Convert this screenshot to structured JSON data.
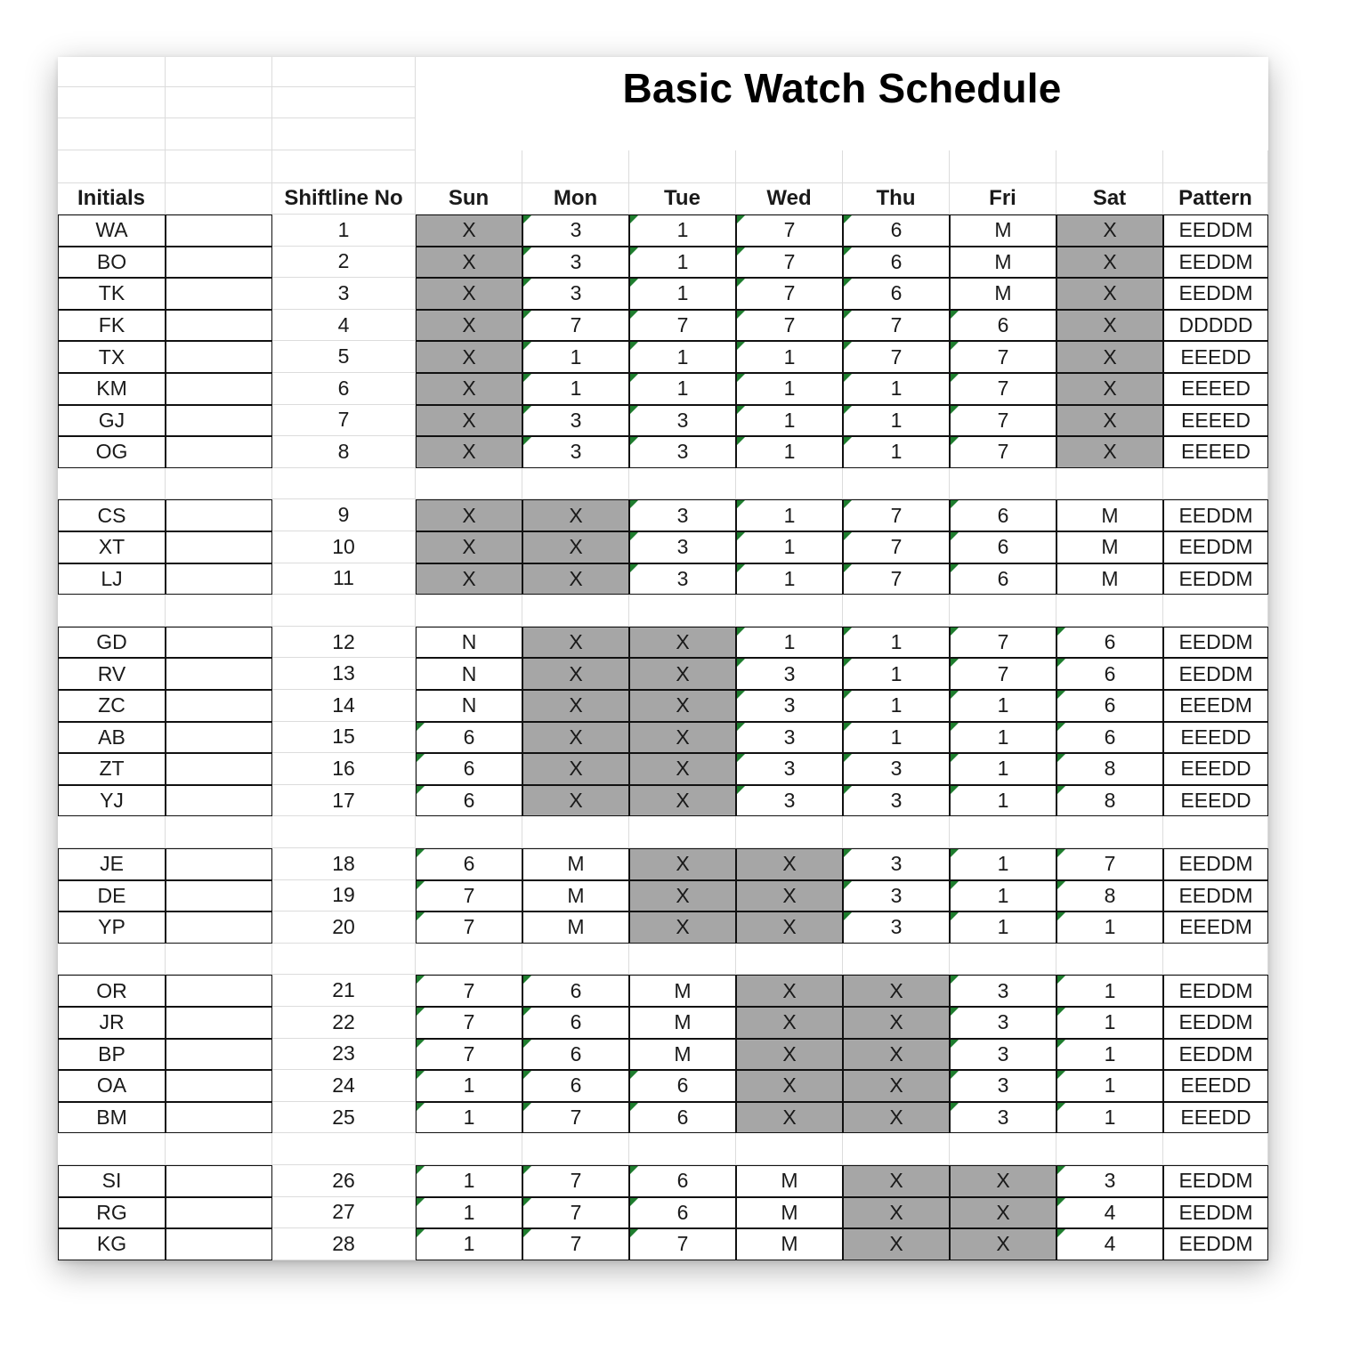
{
  "title": "Basic Watch Schedule",
  "headers": [
    "Initials",
    "",
    "Shiftline No",
    "Sun",
    "Mon",
    "Tue",
    "Wed",
    "Thu",
    "Fri",
    "Sat",
    "Pattern"
  ],
  "rows": [
    {
      "initials": "WA",
      "no": "1",
      "days": [
        "X",
        "3",
        "1",
        "7",
        "6",
        "M",
        "X"
      ],
      "pattern": "EEDDM"
    },
    {
      "initials": "BO",
      "no": "2",
      "days": [
        "X",
        "3",
        "1",
        "7",
        "6",
        "M",
        "X"
      ],
      "pattern": "EEDDM"
    },
    {
      "initials": "TK",
      "no": "3",
      "days": [
        "X",
        "3",
        "1",
        "7",
        "6",
        "M",
        "X"
      ],
      "pattern": "EEDDM"
    },
    {
      "initials": "FK",
      "no": "4",
      "days": [
        "X",
        "7",
        "7",
        "7",
        "7",
        "6",
        "X"
      ],
      "pattern": "DDDDD"
    },
    {
      "initials": "TX",
      "no": "5",
      "days": [
        "X",
        "1",
        "1",
        "1",
        "7",
        "7",
        "X"
      ],
      "pattern": "EEEDD"
    },
    {
      "initials": "KM",
      "no": "6",
      "days": [
        "X",
        "1",
        "1",
        "1",
        "1",
        "7",
        "X"
      ],
      "pattern": "EEEED"
    },
    {
      "initials": "GJ",
      "no": "7",
      "days": [
        "X",
        "3",
        "3",
        "1",
        "1",
        "7",
        "X"
      ],
      "pattern": "EEEED"
    },
    {
      "initials": "OG",
      "no": "8",
      "days": [
        "X",
        "3",
        "3",
        "1",
        "1",
        "7",
        "X"
      ],
      "pattern": "EEEED"
    },
    null,
    {
      "initials": "CS",
      "no": "9",
      "days": [
        "X",
        "X",
        "3",
        "1",
        "7",
        "6",
        "M"
      ],
      "pattern": "EEDDM"
    },
    {
      "initials": "XT",
      "no": "10",
      "days": [
        "X",
        "X",
        "3",
        "1",
        "7",
        "6",
        "M"
      ],
      "pattern": "EEDDM"
    },
    {
      "initials": "LJ",
      "no": "11",
      "days": [
        "X",
        "X",
        "3",
        "1",
        "7",
        "6",
        "M"
      ],
      "pattern": "EEDDM"
    },
    null,
    {
      "initials": "GD",
      "no": "12",
      "days": [
        "N",
        "X",
        "X",
        "1",
        "1",
        "7",
        "6"
      ],
      "pattern": "EEDDM"
    },
    {
      "initials": "RV",
      "no": "13",
      "days": [
        "N",
        "X",
        "X",
        "3",
        "1",
        "7",
        "6"
      ],
      "pattern": "EEDDM"
    },
    {
      "initials": "ZC",
      "no": "14",
      "days": [
        "N",
        "X",
        "X",
        "3",
        "1",
        "1",
        "6"
      ],
      "pattern": "EEEDM"
    },
    {
      "initials": "AB",
      "no": "15",
      "days": [
        "6",
        "X",
        "X",
        "3",
        "1",
        "1",
        "6"
      ],
      "pattern": "EEEDD"
    },
    {
      "initials": "ZT",
      "no": "16",
      "days": [
        "6",
        "X",
        "X",
        "3",
        "3",
        "1",
        "8"
      ],
      "pattern": "EEEDD"
    },
    {
      "initials": "YJ",
      "no": "17",
      "days": [
        "6",
        "X",
        "X",
        "3",
        "3",
        "1",
        "8"
      ],
      "pattern": "EEEDD"
    },
    null,
    {
      "initials": "JE",
      "no": "18",
      "days": [
        "6",
        "M",
        "X",
        "X",
        "3",
        "1",
        "7"
      ],
      "pattern": "EEDDM"
    },
    {
      "initials": "DE",
      "no": "19",
      "days": [
        "7",
        "M",
        "X",
        "X",
        "3",
        "1",
        "8"
      ],
      "pattern": "EEDDM"
    },
    {
      "initials": "YP",
      "no": "20",
      "days": [
        "7",
        "M",
        "X",
        "X",
        "3",
        "1",
        "1"
      ],
      "pattern": "EEEDM"
    },
    null,
    {
      "initials": "OR",
      "no": "21",
      "days": [
        "7",
        "6",
        "M",
        "X",
        "X",
        "3",
        "1"
      ],
      "pattern": "EEDDM"
    },
    {
      "initials": "JR",
      "no": "22",
      "days": [
        "7",
        "6",
        "M",
        "X",
        "X",
        "3",
        "1"
      ],
      "pattern": "EEDDM"
    },
    {
      "initials": "BP",
      "no": "23",
      "days": [
        "7",
        "6",
        "M",
        "X",
        "X",
        "3",
        "1"
      ],
      "pattern": "EEDDM"
    },
    {
      "initials": "OA",
      "no": "24",
      "days": [
        "1",
        "6",
        "6",
        "X",
        "X",
        "3",
        "1"
      ],
      "pattern": "EEEDD"
    },
    {
      "initials": "BM",
      "no": "25",
      "days": [
        "1",
        "7",
        "6",
        "X",
        "X",
        "3",
        "1"
      ],
      "pattern": "EEEDD"
    },
    null,
    {
      "initials": "SI",
      "no": "26",
      "days": [
        "1",
        "7",
        "6",
        "M",
        "X",
        "X",
        "3"
      ],
      "pattern": "EEDDM"
    },
    {
      "initials": "RG",
      "no": "27",
      "days": [
        "1",
        "7",
        "6",
        "M",
        "X",
        "X",
        "4"
      ],
      "pattern": "EEDDM"
    },
    {
      "initials": "KG",
      "no": "28",
      "days": [
        "1",
        "7",
        "7",
        "M",
        "X",
        "X",
        "4"
      ],
      "pattern": "EEDDM"
    }
  ],
  "colors": {
    "off_cell": "#a6a6a6",
    "comment_marker": "#1e7d2e",
    "gridline": "#dcdcdc",
    "border": "#111111"
  }
}
